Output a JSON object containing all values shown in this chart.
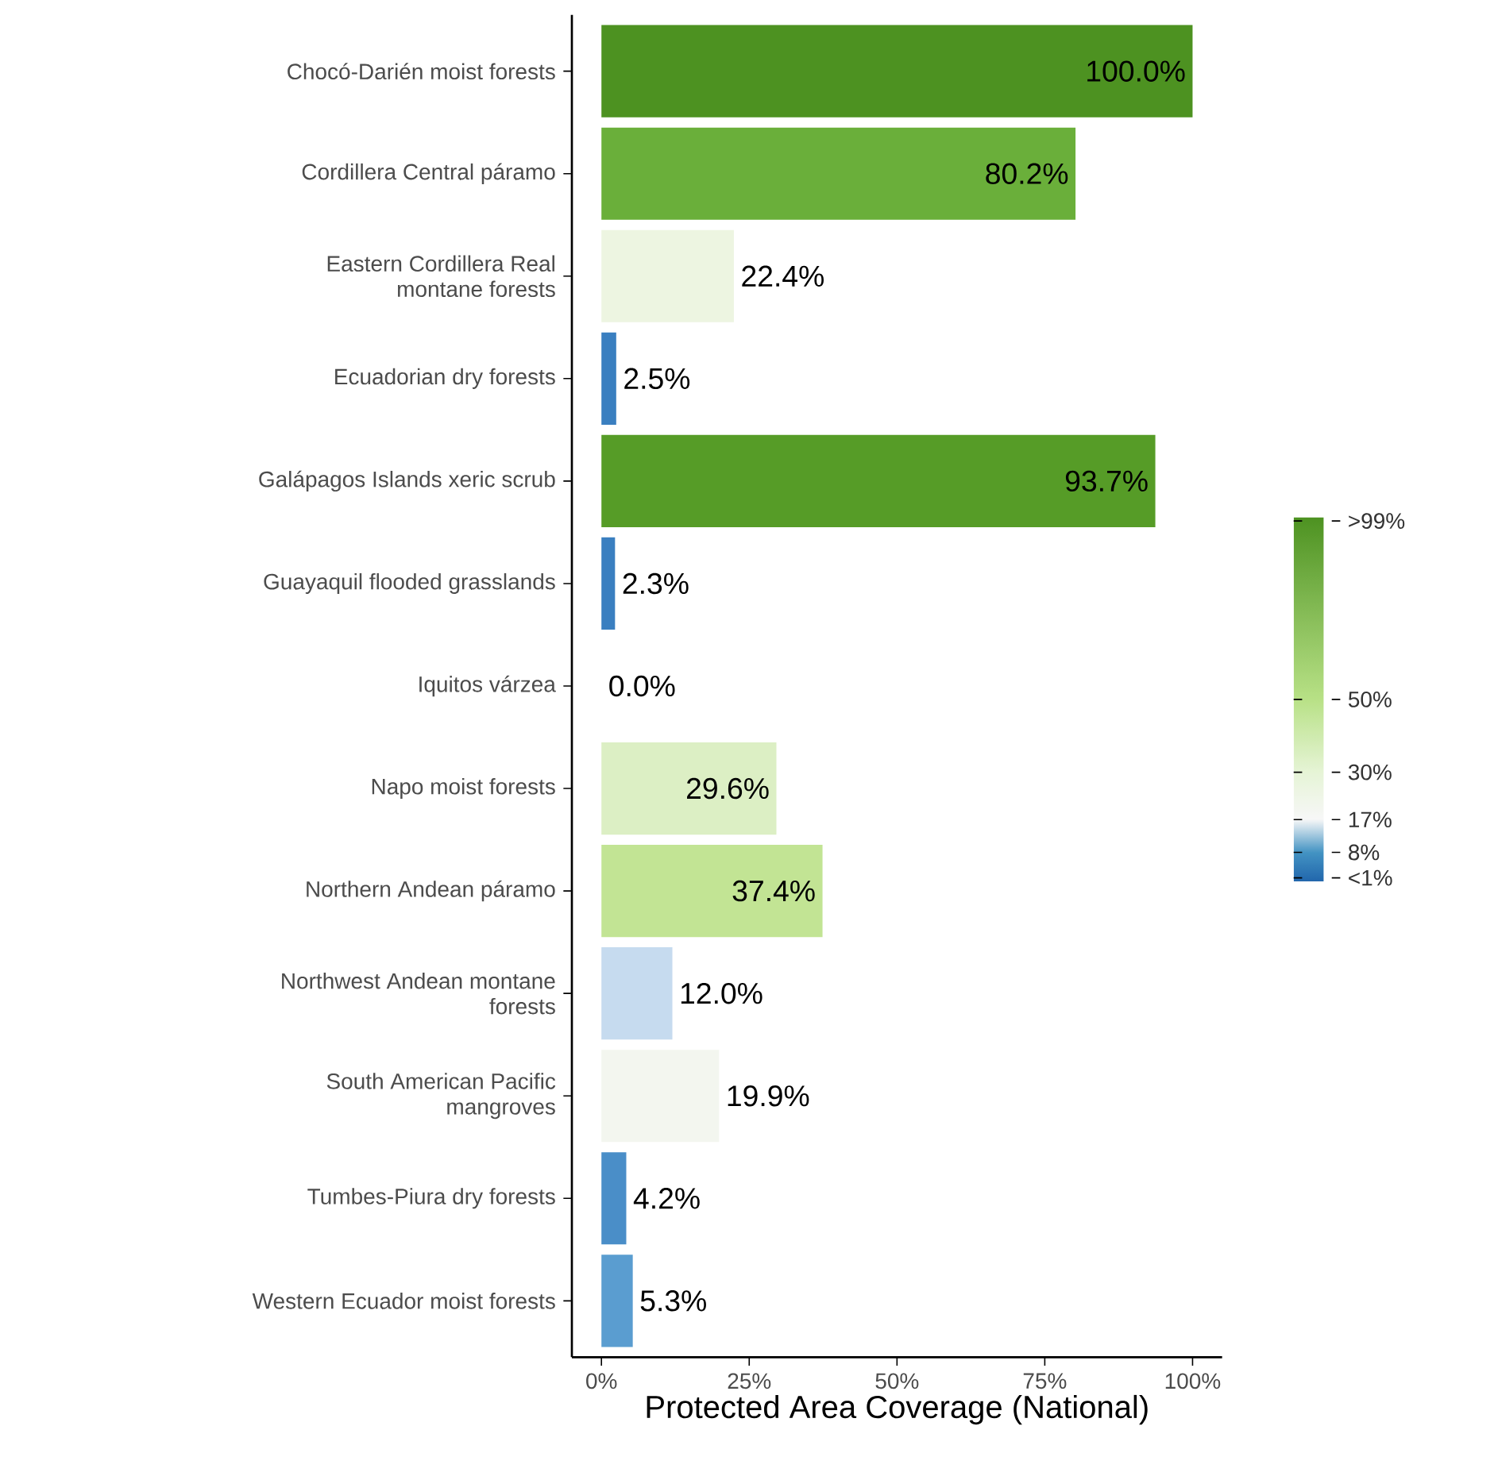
{
  "chart_data": {
    "type": "bar",
    "orientation": "horizontal",
    "xlabel": "Protected Area Coverage (National)",
    "categories": [
      "Chocó-Darién moist forests",
      "Cordillera Central páramo",
      "Eastern Cordillera Real\nmontane forests",
      "Ecuadorian dry forests",
      "Galápagos Islands xeric scrub",
      "Guayaquil flooded grasslands",
      "Iquitos várzea",
      "Napo moist forests",
      "Northern Andean páramo",
      "Northwest Andean montane\nforests",
      "South American Pacific\nmangroves",
      "Tumbes-Piura dry forests",
      "Western Ecuador moist forests"
    ],
    "values": [
      100.0,
      80.2,
      22.4,
      2.5,
      93.7,
      2.3,
      0.0,
      29.6,
      37.4,
      12.0,
      19.9,
      4.2,
      5.3
    ],
    "value_labels": [
      "100.0%",
      "80.2%",
      "22.4%",
      "2.5%",
      "93.7%",
      "2.3%",
      "0.0%",
      "29.6%",
      "37.4%",
      "12.0%",
      "19.9%",
      "4.2%",
      "5.3%"
    ],
    "colors": [
      "#4d9221",
      "#6aaf3a",
      "#edf5e1",
      "#3a7fc0",
      "#569c27",
      "#3a7fc0",
      "#f7f7f7",
      "#dcefc4",
      "#c2e494",
      "#c6dbef",
      "#f3f6ef",
      "#4a8ec8",
      "#5a9dd0"
    ],
    "xlim": [
      -5,
      105
    ],
    "xticks": [
      {
        "value": 0,
        "label": "0%"
      },
      {
        "value": 25,
        "label": "25%"
      },
      {
        "value": 50,
        "label": "50%"
      },
      {
        "value": 75,
        "label": "75%"
      },
      {
        "value": 100,
        "label": "100%"
      }
    ],
    "clim": [
      0,
      100
    ],
    "cticks": [
      {
        "value": 99,
        "label": ">99%"
      },
      {
        "value": 50,
        "label": "50%"
      },
      {
        "value": 30,
        "label": "30%"
      },
      {
        "value": 17,
        "label": "17%"
      },
      {
        "value": 8,
        "label": "8%"
      },
      {
        "value": 1,
        "label": "<1%"
      }
    ],
    "grid": false
  }
}
